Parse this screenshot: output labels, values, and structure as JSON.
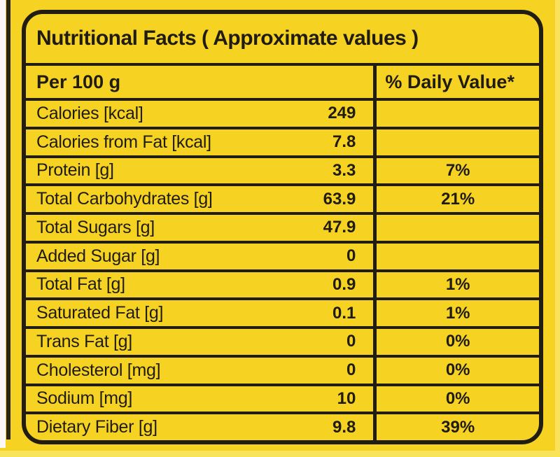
{
  "colors": {
    "background_yellow": "#F6D322",
    "border_black": "#211D11",
    "text_black": "#201C12",
    "edge_highlight_yellow": "#F9E35A",
    "photo_strip_white": "#FDF8F5"
  },
  "label": {
    "title": "Nutritional Facts ( Approximate values )",
    "header": {
      "left": "Per 100 g",
      "right": "% Daily Value*"
    },
    "rows": [
      {
        "name": "Calories [kcal]",
        "value": "249",
        "daily_value": ""
      },
      {
        "name": "Calories from Fat [kcal]",
        "value": "7.8",
        "daily_value": ""
      },
      {
        "name": "Protein [g]",
        "value": "3.3",
        "daily_value": "7%"
      },
      {
        "name": "Total Carbohydrates [g]",
        "value": "63.9",
        "daily_value": "21%"
      },
      {
        "name": "Total Sugars [g]",
        "value": "47.9",
        "daily_value": ""
      },
      {
        "name": "Added Sugar [g]",
        "value": "0",
        "daily_value": ""
      },
      {
        "name": "Total Fat [g]",
        "value": "0.9",
        "daily_value": "1%"
      },
      {
        "name": "Saturated Fat [g]",
        "value": "0.1",
        "daily_value": "1%"
      },
      {
        "name": "Trans Fat [g]",
        "value": "0",
        "daily_value": "0%"
      },
      {
        "name": "Cholesterol [mg]",
        "value": "0",
        "daily_value": "0%"
      },
      {
        "name": "Sodium [mg]",
        "value": "10",
        "daily_value": "0%"
      },
      {
        "name": "Dietary Fiber [g]",
        "value": "9.8",
        "daily_value": "39%"
      }
    ]
  }
}
